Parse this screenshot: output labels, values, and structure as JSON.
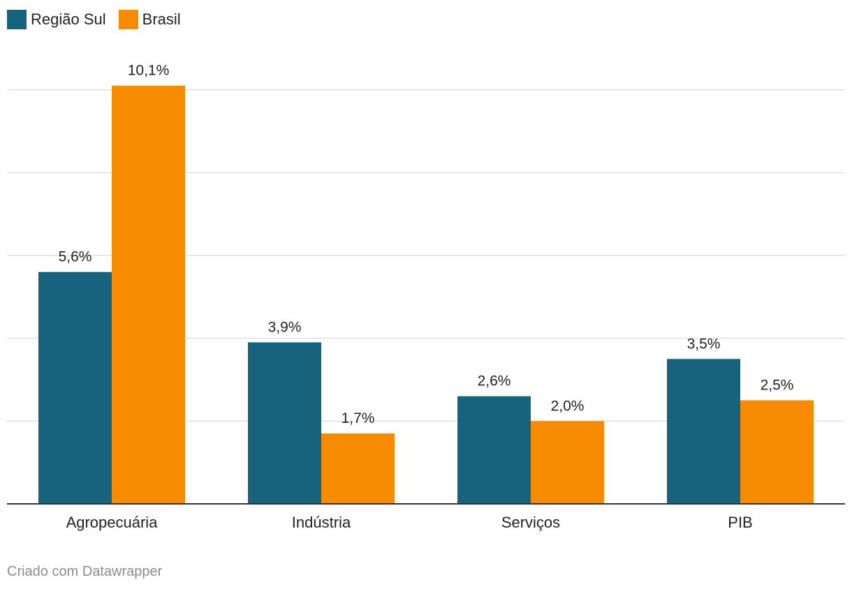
{
  "chart_data": {
    "type": "bar",
    "title": "",
    "xlabel": "",
    "ylabel": "",
    "categories": [
      "Agropecuária",
      "Indústria",
      "Serviços",
      "PIB"
    ],
    "series": [
      {
        "name": "Região Sul",
        "values": [
          5.6,
          3.9,
          2.6,
          3.5
        ],
        "labels": [
          "5,6%",
          "3,9%",
          "2,6%",
          "3,5%"
        ],
        "color": "#17627c"
      },
      {
        "name": "Brasil",
        "values": [
          10.1,
          1.7,
          2.0,
          2.5
        ],
        "labels": [
          "10,1%",
          "1,7%",
          "2,0%",
          "2,5%"
        ],
        "color": "#f68b00"
      }
    ],
    "ylim": [
      0,
      12
    ],
    "gridlines": [
      2,
      4,
      6,
      8,
      10
    ],
    "grid": true,
    "legend_position": "top-left"
  },
  "footer": {
    "credit": "Criado com Datawrapper"
  }
}
